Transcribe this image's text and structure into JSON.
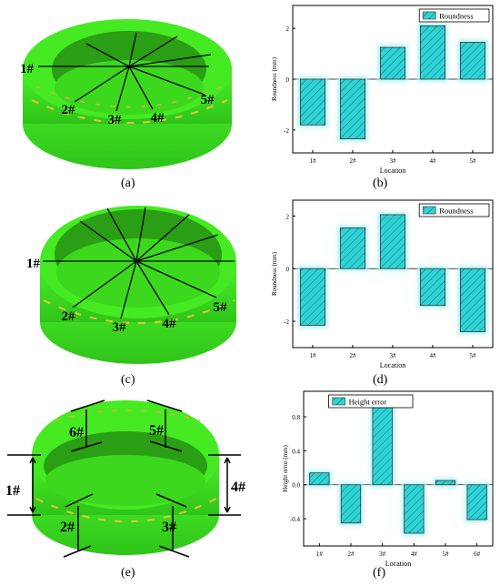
{
  "figure": {
    "panel_labels": [
      "(a)",
      "(b)",
      "(c)",
      "(d)",
      "(e)",
      "(f)"
    ],
    "ring_a_labels": [
      "1#",
      "2#",
      "3#",
      "4#",
      "5#"
    ],
    "ring_c_labels": [
      "1#",
      "2#",
      "3#",
      "4#",
      "5#"
    ],
    "ring_e_labels": [
      "1#",
      "2#",
      "3#",
      "4#",
      "5#",
      "6#"
    ],
    "colors": {
      "ring_green": "#3ce61a",
      "ring_dark": "#1f9a10",
      "bar_fill": "#2fd3d6",
      "bar_glow": "#b8f3f3"
    }
  },
  "chart_data": [
    {
      "type": "bar",
      "legend": "Roundness",
      "legend_position": "top-right",
      "categories": [
        "1#",
        "2#",
        "3#",
        "4#",
        "5#"
      ],
      "values": [
        -1.8,
        -2.35,
        1.25,
        2.1,
        1.45
      ],
      "xlabel": "Location",
      "ylabel": "Roundness (mm)",
      "ylim": [
        -2.9,
        2.9
      ],
      "yticks": [
        "2",
        "0",
        "-2"
      ],
      "ytick_values": [
        2,
        0,
        -2
      ],
      "grid": false
    },
    {
      "type": "bar",
      "legend": "Roundness",
      "legend_position": "top-right",
      "categories": [
        "1#",
        "2#",
        "3#",
        "4#",
        "5#"
      ],
      "values": [
        -2.15,
        1.55,
        2.05,
        -1.4,
        -2.4
      ],
      "xlabel": "Location",
      "ylabel": "Roundness (mm)",
      "ylim": [
        -3.0,
        2.6
      ],
      "yticks": [
        "2",
        "0",
        "-2"
      ],
      "ytick_values": [
        2,
        0,
        -2
      ],
      "grid": false
    },
    {
      "type": "bar",
      "legend": "Height error",
      "legend_position": "top-left",
      "categories": [
        "1#",
        "2#",
        "3#",
        "4#",
        "5#",
        "6#"
      ],
      "values": [
        0.14,
        -0.45,
        0.91,
        -0.57,
        0.05,
        -0.41
      ],
      "xlabel": "Location",
      "ylabel": "Height error (mm)",
      "ylim": [
        -0.72,
        1.1
      ],
      "yticks": [
        "0.8",
        "0.4",
        "0.0",
        "-0.4"
      ],
      "ytick_values": [
        0.8,
        0.4,
        0.0,
        -0.4
      ],
      "grid": false
    }
  ]
}
